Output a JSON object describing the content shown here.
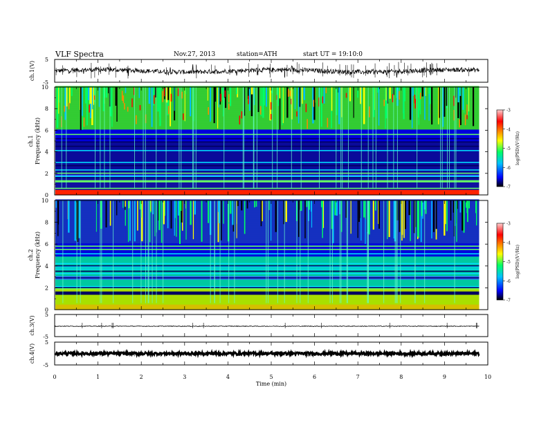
{
  "header": {
    "title": "VLF Spectra",
    "date": "Nov.27, 2013",
    "station": "station=ATH",
    "start": "start  UT =   19:10:0"
  },
  "colors": {
    "background": "#ffffff",
    "axes": "#000000",
    "colormap": [
      "#000000",
      "#0000ff",
      "#00bfff",
      "#00ff66",
      "#ffff00",
      "#ff8800",
      "#ff0000",
      "#ffd0d0"
    ]
  },
  "chart_data": {
    "type": "heatmap",
    "xlabel": "Time  (min)",
    "xlim": [
      0,
      10
    ],
    "xticks": [
      "0",
      "1",
      "2",
      "3",
      "4",
      "5",
      "6",
      "7",
      "8",
      "9",
      "10"
    ],
    "data_span_min": [
      0,
      9.8
    ],
    "panels": [
      {
        "kind": "waveform",
        "ylabel": "ch.1(V)",
        "yticks": [
          "5",
          "-5"
        ],
        "ylim": [
          -5,
          5
        ],
        "noise": "high"
      },
      {
        "kind": "spectrogram",
        "channel": "ch.1",
        "ylabel": "Frequency  (kHz)",
        "ylim": [
          0,
          10
        ],
        "yticks": [
          "0",
          "2",
          "4",
          "6",
          "8",
          "10"
        ],
        "colorbar": {
          "label": "log(PSD)(V²/Hz)",
          "ticks": [
            "-3",
            "-4",
            "-5",
            "-6",
            "-7"
          ],
          "range": [
            -7,
            -3
          ]
        }
      },
      {
        "kind": "spectrogram",
        "channel": "ch.2",
        "ylabel": "Frequency  (kHz)",
        "ylim": [
          0,
          10
        ],
        "yticks": [
          "0",
          "2",
          "4",
          "6",
          "8",
          "10"
        ],
        "colorbar": {
          "label": "log(PSD)(V²/Hz)",
          "ticks": [
            "-3",
            "-4",
            "-5",
            "-6",
            "-7"
          ],
          "range": [
            -7,
            -3
          ]
        }
      },
      {
        "kind": "waveform",
        "ylabel": "ch.3(V)",
        "yticks": [
          "5",
          "-5"
        ],
        "ylim": [
          -5,
          5
        ],
        "noise": "flat"
      },
      {
        "kind": "waveform",
        "ylabel": "ch.4(V)",
        "yticks": [
          "5",
          "-5"
        ],
        "ylim": [
          -5,
          5
        ],
        "noise": "thick"
      }
    ]
  }
}
